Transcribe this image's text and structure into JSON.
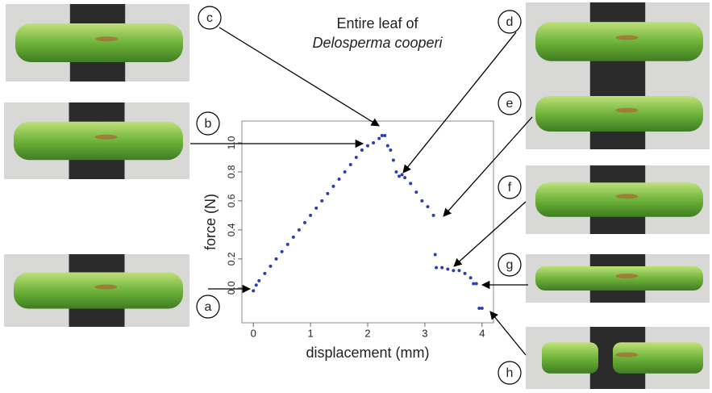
{
  "chart_data": {
    "type": "scatter",
    "title": [
      "Entire leaf of",
      "Delosperma cooperi"
    ],
    "x_label": "displacement (mm)",
    "y_label": "force (N)",
    "xlim": [
      -0.2,
      4.2
    ],
    "ylim": [
      -0.24,
      1.15
    ],
    "xticks": [
      0,
      1,
      2,
      3,
      4
    ],
    "yticks": [
      {
        "value": 0,
        "label": "0.0"
      },
      0.2,
      0.4,
      0.6,
      0.8,
      {
        "value": 1,
        "label": "1.0"
      }
    ],
    "annotations": [
      "a",
      "b",
      "c",
      "d",
      "e",
      "f",
      "g",
      "h"
    ],
    "series": [
      {
        "color": "#2b3fae",
        "x": [
          0,
          0.05,
          0.1,
          0.2,
          0.3,
          0.4,
          0.5,
          0.6,
          0.7,
          0.8,
          0.9,
          1.0,
          1.1,
          1.2,
          1.3,
          1.4,
          1.5,
          1.6,
          1.7,
          1.8,
          1.9,
          2.0,
          2.1,
          2.2,
          2.25,
          2.3,
          2.35,
          2.4,
          2.45,
          2.5,
          2.55,
          2.6,
          2.65,
          2.75,
          2.85,
          2.95,
          3.05,
          3.15,
          3.18,
          3.2,
          3.3,
          3.4,
          3.5,
          3.6,
          3.7,
          3.8,
          3.85,
          3.9,
          3.95,
          4.0
        ],
        "values": [
          -0.02,
          0.02,
          0.05,
          0.1,
          0.15,
          0.2,
          0.25,
          0.3,
          0.35,
          0.4,
          0.45,
          0.5,
          0.55,
          0.6,
          0.65,
          0.7,
          0.75,
          0.8,
          0.85,
          0.9,
          0.95,
          0.98,
          1.0,
          1.03,
          1.05,
          1.05,
          0.98,
          0.95,
          0.88,
          0.8,
          0.77,
          0.78,
          0.76,
          0.72,
          0.66,
          0.6,
          0.56,
          0.5,
          0.23,
          0.14,
          0.14,
          0.13,
          0.12,
          0.12,
          0.1,
          0.07,
          0.03,
          0.03,
          -0.14,
          -0.14
        ]
      }
    ]
  }
}
